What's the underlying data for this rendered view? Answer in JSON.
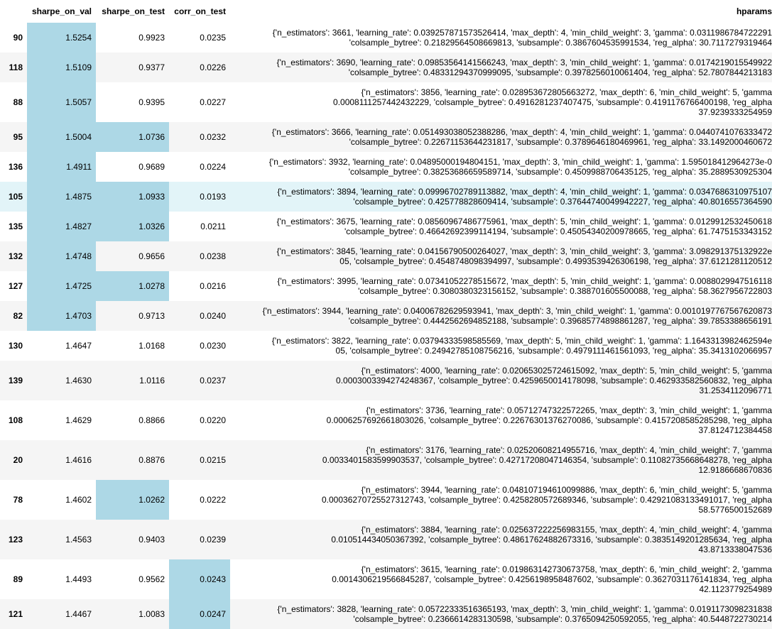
{
  "table": {
    "columns": [
      "sharpe_on_val",
      "sharpe_on_test",
      "corr_on_test",
      "hparams"
    ],
    "highlight_color": "#add8e6",
    "stripe_color": "#f5f5f5",
    "hover_color": "#e2f4f8",
    "rows": [
      {
        "index": "90",
        "cells": [
          "1.5254",
          "0.9923",
          "0.0235"
        ],
        "highlight": [
          true,
          false,
          false
        ],
        "hparams": [
          "{'n_estimators': 3661, 'learning_rate': 0.039257871573526414, 'max_depth': 4, 'min_child_weight': 3, 'gamma': 0.0311986784722291",
          "'colsample_bytree': 0.21829564508669813, 'subsample': 0.3867604535991534, 'reg_alpha': 30.7117279319464"
        ]
      },
      {
        "index": "118",
        "cells": [
          "1.5109",
          "0.9377",
          "0.0226"
        ],
        "highlight": [
          true,
          false,
          false
        ],
        "hparams": [
          "{'n_estimators': 3690, 'learning_rate': 0.09853564141566243, 'max_depth': 3, 'min_child_weight': 1, 'gamma': 0.0174219015549922",
          "'colsample_bytree': 0.48331294370999095, 'subsample': 0.3978256010061404, 'reg_alpha': 52.7807844213183"
        ]
      },
      {
        "index": "88",
        "cells": [
          "1.5057",
          "0.9395",
          "0.0227"
        ],
        "highlight": [
          true,
          false,
          false
        ],
        "hparams": [
          "{'n_estimators': 3856, 'learning_rate': 0.028953672805663272, 'max_depth': 6, 'min_child_weight': 5, 'gamma",
          "0.0008111257442432229, 'colsample_bytree': 0.4916281237407475, 'subsample': 0.4191176766400198, 'reg_alpha",
          "37.9239333254959"
        ]
      },
      {
        "index": "95",
        "cells": [
          "1.5004",
          "1.0736",
          "0.0232"
        ],
        "highlight": [
          true,
          true,
          false
        ],
        "hparams": [
          "{'n_estimators': 3666, 'learning_rate': 0.051493038052388286, 'max_depth': 4, 'min_child_weight': 1, 'gamma': 0.0440741076333472",
          "'colsample_bytree': 0.22671153644231817, 'subsample': 0.3789646180469961, 'reg_alpha': 33.1492000460672"
        ]
      },
      {
        "index": "136",
        "cells": [
          "1.4911",
          "0.9689",
          "0.0224"
        ],
        "highlight": [
          true,
          false,
          false
        ],
        "hparams": [
          "{'n_estimators': 3932, 'learning_rate': 0.04895000194804151, 'max_depth': 3, 'min_child_weight': 1, 'gamma': 1.595018412964273e-0",
          "'colsample_bytree': 0.38253686659589714, 'subsample': 0.4509988706435125, 'reg_alpha': 35.2889530925304"
        ]
      },
      {
        "index": "105",
        "cells": [
          "1.4875",
          "1.0933",
          "0.0193"
        ],
        "highlight": [
          true,
          true,
          false
        ],
        "hovered": true,
        "hparams": [
          "{'n_estimators': 3894, 'learning_rate': 0.09996702789113882, 'max_depth': 4, 'min_child_weight': 1, 'gamma': 0.0347686310975107",
          "'colsample_bytree': 0.425778828609414, 'subsample': 0.37644740049942227, 'reg_alpha': 40.8016557364590"
        ]
      },
      {
        "index": "135",
        "cells": [
          "1.4827",
          "1.0326",
          "0.0211"
        ],
        "highlight": [
          true,
          true,
          false
        ],
        "hparams": [
          "{'n_estimators': 3675, 'learning_rate': 0.08560967486775961, 'max_depth': 5, 'min_child_weight': 1, 'gamma': 0.0129912532450618",
          "'colsample_bytree': 0.46642692399114194, 'subsample': 0.45054340200978665, 'reg_alpha': 61.7475153343152"
        ]
      },
      {
        "index": "132",
        "cells": [
          "1.4748",
          "0.9656",
          "0.0238"
        ],
        "highlight": [
          true,
          false,
          false
        ],
        "hparams": [
          "{'n_estimators': 3845, 'learning_rate': 0.04156790500264027, 'max_depth': 3, 'min_child_weight': 3, 'gamma': 3.098291375132922e",
          "05, 'colsample_bytree': 0.4548748098394997, 'subsample': 0.4993539426306198, 'reg_alpha': 37.6121281120512"
        ]
      },
      {
        "index": "127",
        "cells": [
          "1.4725",
          "1.0278",
          "0.0216"
        ],
        "highlight": [
          true,
          true,
          false
        ],
        "hparams": [
          "{'n_estimators': 3995, 'learning_rate': 0.07341052278515672, 'max_depth': 5, 'min_child_weight': 1, 'gamma': 0.0088029947516118",
          "'colsample_bytree': 0.3080380323156152, 'subsample': 0.388701605500088, 'reg_alpha': 58.3627956722803"
        ]
      },
      {
        "index": "82",
        "cells": [
          "1.4703",
          "0.9713",
          "0.0240"
        ],
        "highlight": [
          true,
          false,
          false
        ],
        "hparams": [
          "{'n_estimators': 3944, 'learning_rate': 0.04006782629593941, 'max_depth': 3, 'min_child_weight': 1, 'gamma': 0.0010197767567620873",
          "'colsample_bytree': 0.4442562694852188, 'subsample': 0.39685774898861287, 'reg_alpha': 39.7853388656191"
        ]
      },
      {
        "index": "130",
        "cells": [
          "1.4647",
          "1.0168",
          "0.0230"
        ],
        "highlight": [
          false,
          false,
          false
        ],
        "hparams": [
          "{'n_estimators': 3822, 'learning_rate': 0.03794333598585569, 'max_depth': 5, 'min_child_weight': 1, 'gamma': 1.1643313982462594e",
          "05, 'colsample_bytree': 0.24942785108756216, 'subsample': 0.4979111461561093, 'reg_alpha': 35.3413102066957"
        ]
      },
      {
        "index": "139",
        "cells": [
          "1.4630",
          "1.0116",
          "0.0237"
        ],
        "highlight": [
          false,
          false,
          false
        ],
        "hparams": [
          "{'n_estimators': 4000, 'learning_rate': 0.020653025724615092, 'max_depth': 5, 'min_child_weight': 5, 'gamma",
          "0.0003003394274248367, 'colsample_bytree': 0.4259650014178098, 'subsample': 0.462933582560832, 'reg_alpha",
          "31.2534112096771"
        ]
      },
      {
        "index": "108",
        "cells": [
          "1.4629",
          "0.8866",
          "0.0220"
        ],
        "highlight": [
          false,
          false,
          false
        ],
        "hparams": [
          "{'n_estimators': 3736, 'learning_rate': 0.05712747322572265, 'max_depth': 3, 'min_child_weight': 1, 'gamma",
          "0.0006257692661803026, 'colsample_bytree': 0.22676301376270086, 'subsample': 0.4157208585285298, 'reg_alpha",
          "37.8124712384458"
        ]
      },
      {
        "index": "20",
        "cells": [
          "1.4616",
          "0.8876",
          "0.0215"
        ],
        "highlight": [
          false,
          false,
          false
        ],
        "hparams": [
          "{'n_estimators': 3176, 'learning_rate': 0.02520608214955716, 'max_depth': 4, 'min_child_weight': 7, 'gamma",
          "0.0033401583599903537, 'colsample_bytree': 0.42717208047146354, 'subsample': 0.11082735668648278, 'reg_alpha",
          "12.9186668670836"
        ]
      },
      {
        "index": "78",
        "cells": [
          "1.4602",
          "1.0262",
          "0.0222"
        ],
        "highlight": [
          false,
          true,
          false
        ],
        "hparams": [
          "{'n_estimators': 3944, 'learning_rate': 0.048107194610099886, 'max_depth': 6, 'min_child_weight': 5, 'gamma",
          "0.00036270725527312743, 'colsample_bytree': 0.4258280572689346, 'subsample': 0.42921083133491017, 'reg_alpha",
          "58.5776500152689"
        ]
      },
      {
        "index": "123",
        "cells": [
          "1.4563",
          "0.9403",
          "0.0239"
        ],
        "highlight": [
          false,
          false,
          false
        ],
        "hparams": [
          "{'n_estimators': 3884, 'learning_rate': 0.025637222256983155, 'max_depth': 4, 'min_child_weight': 4, 'gamma",
          "0.010514434050367392, 'colsample_bytree': 0.48617624882673316, 'subsample': 0.3835149201285634, 'reg_alpha",
          "43.8713338047536"
        ]
      },
      {
        "index": "89",
        "cells": [
          "1.4493",
          "0.9562",
          "0.0243"
        ],
        "highlight": [
          false,
          false,
          true
        ],
        "hparams": [
          "{'n_estimators': 3615, 'learning_rate': 0.019863142730673758, 'max_depth': 6, 'min_child_weight': 2, 'gamma",
          "0.0014306219566845287, 'colsample_bytree': 0.4256198958487602, 'subsample': 0.3627031176141834, 'reg_alpha",
          "42.1123779254989"
        ]
      },
      {
        "index": "121",
        "cells": [
          "1.4467",
          "1.0083",
          "0.0247"
        ],
        "highlight": [
          false,
          false,
          true
        ],
        "hparams": [
          "{'n_estimators': 3828, 'learning_rate': 0.05722333516365193, 'max_depth': 3, 'min_child_weight': 1, 'gamma': 0.0191173098231838",
          "'colsample_bytree': 0.2366614283130598, 'subsample': 0.3765094250592055, 'reg_alpha': 40.5448722730214"
        ]
      }
    ]
  }
}
